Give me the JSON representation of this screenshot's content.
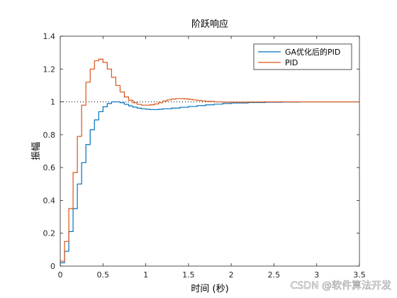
{
  "chart_data": {
    "type": "line",
    "title": "阶跃响应",
    "xlabel": "时间 (秒)",
    "ylabel": "振幅",
    "xlim": [
      0,
      3.5
    ],
    "ylim": [
      0,
      1.4
    ],
    "xticks": [
      0,
      0.5,
      1,
      1.5,
      2,
      2.5,
      3,
      3.5
    ],
    "xtick_labels": [
      "0",
      "0.5",
      "1",
      "1.5",
      "2",
      "2.5",
      "3",
      "3.5"
    ],
    "yticks": [
      0,
      0.2,
      0.4,
      0.6,
      0.8,
      1.0,
      1.2,
      1.4
    ],
    "ytick_labels": [
      "0",
      "0.2",
      "0.4",
      "0.6",
      "0.8",
      "1",
      "1.2",
      "1.4"
    ],
    "grid": false,
    "legend_position": "top-right",
    "step_style": "stairs",
    "reference_line": {
      "y": 1.0,
      "style": "dotted"
    },
    "series": [
      {
        "name": "GA优化后的PID",
        "color": "#0072BD",
        "x": [
          0,
          0.05,
          0.1,
          0.15,
          0.2,
          0.25,
          0.3,
          0.35,
          0.4,
          0.45,
          0.5,
          0.55,
          0.6,
          0.65,
          0.7,
          0.75,
          0.8,
          0.85,
          0.9,
          0.95,
          1.0,
          1.05,
          1.1,
          1.15,
          1.2,
          1.3,
          1.4,
          1.5,
          1.6,
          1.7,
          1.8,
          1.9,
          2.0,
          2.2,
          2.4,
          2.6,
          2.8,
          3.0,
          3.2,
          3.5
        ],
        "y": [
          0.02,
          0.09,
          0.21,
          0.35,
          0.5,
          0.63,
          0.74,
          0.83,
          0.89,
          0.94,
          0.97,
          0.99,
          1.0,
          1.0,
          0.995,
          0.985,
          0.975,
          0.968,
          0.962,
          0.958,
          0.955,
          0.953,
          0.953,
          0.955,
          0.958,
          0.962,
          0.967,
          0.972,
          0.977,
          0.982,
          0.986,
          0.99,
          0.993,
          0.996,
          0.998,
          0.999,
          1.0,
          1.0,
          1.0,
          1.0
        ]
      },
      {
        "name": "PID",
        "color": "#D95319",
        "x": [
          0,
          0.05,
          0.1,
          0.15,
          0.2,
          0.25,
          0.3,
          0.35,
          0.4,
          0.45,
          0.5,
          0.55,
          0.6,
          0.65,
          0.7,
          0.75,
          0.8,
          0.85,
          0.9,
          0.95,
          1.0,
          1.05,
          1.1,
          1.15,
          1.2,
          1.25,
          1.3,
          1.35,
          1.4,
          1.45,
          1.5,
          1.55,
          1.6,
          1.65,
          1.7,
          1.8,
          1.9,
          2.0,
          2.2,
          2.4,
          2.6,
          2.8,
          3.0,
          3.5
        ],
        "y": [
          0.03,
          0.15,
          0.35,
          0.57,
          0.79,
          0.98,
          1.12,
          1.2,
          1.25,
          1.26,
          1.24,
          1.2,
          1.15,
          1.1,
          1.06,
          1.03,
          1.01,
          0.995,
          0.985,
          0.98,
          0.98,
          0.982,
          0.987,
          0.995,
          1.005,
          1.012,
          1.017,
          1.02,
          1.02,
          1.018,
          1.015,
          1.012,
          1.009,
          1.006,
          1.003,
          1.0,
          0.998,
          0.998,
          0.999,
          1.0,
          1.0,
          1.0,
          1.0,
          1.0
        ]
      }
    ]
  },
  "watermark": "CSDN @软件算法开发"
}
